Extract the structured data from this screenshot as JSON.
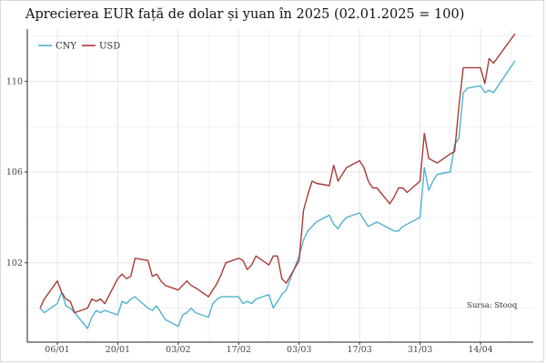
{
  "chart_data": {
    "type": "line",
    "title": "Aprecierea EUR față de dolar și yuan în 2025 (02.01.2025 = 100)",
    "source_note": "Sursa: Stooq",
    "xlabel": "",
    "ylabel": "",
    "x_start": "2025-01-02",
    "x_end": "2025-04-22",
    "ylim": [
      98.5,
      112.3
    ],
    "yticks": [
      102,
      106,
      110
    ],
    "xticks": [
      {
        "date": "2025-01-06",
        "label": "06/01"
      },
      {
        "date": "2025-01-20",
        "label": "20/01"
      },
      {
        "date": "2025-02-03",
        "label": "03/02"
      },
      {
        "date": "2025-02-17",
        "label": "17/02"
      },
      {
        "date": "2025-03-03",
        "label": "03/03"
      },
      {
        "date": "2025-03-17",
        "label": "17/03"
      },
      {
        "date": "2025-03-31",
        "label": "31/03"
      },
      {
        "date": "2025-04-14",
        "label": "14/04"
      }
    ],
    "grid": true,
    "legend_position": "top-left",
    "series": [
      {
        "name": "CNY",
        "color": "#4fb3cf",
        "points": [
          [
            "2025-01-02",
            100.0
          ],
          [
            "2025-01-03",
            99.8
          ],
          [
            "2025-01-06",
            100.2
          ],
          [
            "2025-01-07",
            100.7
          ],
          [
            "2025-01-08",
            100.1
          ],
          [
            "2025-01-09",
            100.0
          ],
          [
            "2025-01-10",
            99.8
          ],
          [
            "2025-01-13",
            99.1
          ],
          [
            "2025-01-14",
            99.6
          ],
          [
            "2025-01-15",
            99.9
          ],
          [
            "2025-01-16",
            99.8
          ],
          [
            "2025-01-17",
            99.9
          ],
          [
            "2025-01-20",
            99.7
          ],
          [
            "2025-01-21",
            100.3
          ],
          [
            "2025-01-22",
            100.2
          ],
          [
            "2025-01-23",
            100.4
          ],
          [
            "2025-01-24",
            100.5
          ],
          [
            "2025-01-27",
            100.0
          ],
          [
            "2025-01-28",
            99.9
          ],
          [
            "2025-01-29",
            100.1
          ],
          [
            "2025-01-30",
            99.8
          ],
          [
            "2025-01-31",
            99.5
          ],
          [
            "2025-02-03",
            99.2
          ],
          [
            "2025-02-04",
            99.7
          ],
          [
            "2025-02-05",
            99.8
          ],
          [
            "2025-02-06",
            100.0
          ],
          [
            "2025-02-07",
            99.8
          ],
          [
            "2025-02-10",
            99.6
          ],
          [
            "2025-02-11",
            100.2
          ],
          [
            "2025-02-12",
            100.4
          ],
          [
            "2025-02-13",
            100.5
          ],
          [
            "2025-02-14",
            100.5
          ],
          [
            "2025-02-17",
            100.5
          ],
          [
            "2025-02-18",
            100.2
          ],
          [
            "2025-02-19",
            100.3
          ],
          [
            "2025-02-20",
            100.2
          ],
          [
            "2025-02-21",
            100.4
          ],
          [
            "2025-02-24",
            100.6
          ],
          [
            "2025-02-25",
            100.0
          ],
          [
            "2025-02-26",
            100.3
          ],
          [
            "2025-02-27",
            100.6
          ],
          [
            "2025-02-28",
            100.8
          ],
          [
            "2025-03-03",
            102.3
          ],
          [
            "2025-03-04",
            103.0
          ],
          [
            "2025-03-05",
            103.4
          ],
          [
            "2025-03-06",
            103.6
          ],
          [
            "2025-03-07",
            103.8
          ],
          [
            "2025-03-10",
            104.1
          ],
          [
            "2025-03-11",
            103.7
          ],
          [
            "2025-03-12",
            103.5
          ],
          [
            "2025-03-13",
            103.8
          ],
          [
            "2025-03-14",
            104.0
          ],
          [
            "2025-03-17",
            104.2
          ],
          [
            "2025-03-18",
            103.9
          ],
          [
            "2025-03-19",
            103.6
          ],
          [
            "2025-03-20",
            103.7
          ],
          [
            "2025-03-21",
            103.8
          ],
          [
            "2025-03-24",
            103.5
          ],
          [
            "2025-03-25",
            103.4
          ],
          [
            "2025-03-26",
            103.4
          ],
          [
            "2025-03-27",
            103.6
          ],
          [
            "2025-03-28",
            103.7
          ],
          [
            "2025-03-31",
            104.0
          ],
          [
            "2025-04-01",
            106.2
          ],
          [
            "2025-04-02",
            105.2
          ],
          [
            "2025-04-03",
            105.6
          ],
          [
            "2025-04-04",
            105.9
          ],
          [
            "2025-04-07",
            106.0
          ],
          [
            "2025-04-08",
            107.2
          ],
          [
            "2025-04-09",
            107.5
          ],
          [
            "2025-04-10",
            109.5
          ],
          [
            "2025-04-11",
            109.7
          ],
          [
            "2025-04-14",
            109.8
          ],
          [
            "2025-04-15",
            109.5
          ],
          [
            "2025-04-16",
            109.6
          ],
          [
            "2025-04-17",
            109.5
          ],
          [
            "2025-04-22",
            110.9
          ]
        ]
      },
      {
        "name": "USD",
        "color": "#a93a35",
        "points": [
          [
            "2025-01-02",
            100.0
          ],
          [
            "2025-01-03",
            100.4
          ],
          [
            "2025-01-06",
            101.2
          ],
          [
            "2025-01-07",
            100.7
          ],
          [
            "2025-01-08",
            100.4
          ],
          [
            "2025-01-09",
            100.3
          ],
          [
            "2025-01-10",
            99.8
          ],
          [
            "2025-01-13",
            100.0
          ],
          [
            "2025-01-14",
            100.4
          ],
          [
            "2025-01-15",
            100.3
          ],
          [
            "2025-01-16",
            100.4
          ],
          [
            "2025-01-17",
            100.2
          ],
          [
            "2025-01-20",
            101.3
          ],
          [
            "2025-01-21",
            101.5
          ],
          [
            "2025-01-22",
            101.3
          ],
          [
            "2025-01-23",
            101.4
          ],
          [
            "2025-01-24",
            102.2
          ],
          [
            "2025-01-27",
            102.1
          ],
          [
            "2025-01-28",
            101.4
          ],
          [
            "2025-01-29",
            101.5
          ],
          [
            "2025-01-30",
            101.2
          ],
          [
            "2025-01-31",
            101.0
          ],
          [
            "2025-02-03",
            100.8
          ],
          [
            "2025-02-04",
            101.0
          ],
          [
            "2025-02-05",
            101.2
          ],
          [
            "2025-02-06",
            101.0
          ],
          [
            "2025-02-07",
            100.9
          ],
          [
            "2025-02-10",
            100.5
          ],
          [
            "2025-02-11",
            100.8
          ],
          [
            "2025-02-12",
            101.1
          ],
          [
            "2025-02-13",
            101.5
          ],
          [
            "2025-02-14",
            102.0
          ],
          [
            "2025-02-17",
            102.2
          ],
          [
            "2025-02-18",
            102.1
          ],
          [
            "2025-02-19",
            101.7
          ],
          [
            "2025-02-20",
            101.9
          ],
          [
            "2025-02-21",
            102.3
          ],
          [
            "2025-02-24",
            101.9
          ],
          [
            "2025-02-25",
            102.3
          ],
          [
            "2025-02-26",
            102.3
          ],
          [
            "2025-02-27",
            101.3
          ],
          [
            "2025-02-28",
            101.1
          ],
          [
            "2025-03-03",
            102.1
          ],
          [
            "2025-03-04",
            104.3
          ],
          [
            "2025-03-05",
            105.0
          ],
          [
            "2025-03-06",
            105.6
          ],
          [
            "2025-03-07",
            105.5
          ],
          [
            "2025-03-10",
            105.4
          ],
          [
            "2025-03-11",
            106.3
          ],
          [
            "2025-03-12",
            105.6
          ],
          [
            "2025-03-13",
            105.9
          ],
          [
            "2025-03-14",
            106.2
          ],
          [
            "2025-03-17",
            106.5
          ],
          [
            "2025-03-18",
            106.2
          ],
          [
            "2025-03-19",
            105.6
          ],
          [
            "2025-03-20",
            105.3
          ],
          [
            "2025-03-21",
            105.3
          ],
          [
            "2025-03-24",
            104.6
          ],
          [
            "2025-03-25",
            104.9
          ],
          [
            "2025-03-26",
            105.3
          ],
          [
            "2025-03-27",
            105.3
          ],
          [
            "2025-03-28",
            105.1
          ],
          [
            "2025-03-31",
            105.6
          ],
          [
            "2025-04-01",
            107.7
          ],
          [
            "2025-04-02",
            106.6
          ],
          [
            "2025-04-03",
            106.5
          ],
          [
            "2025-04-04",
            106.4
          ],
          [
            "2025-04-07",
            106.8
          ],
          [
            "2025-04-08",
            106.9
          ],
          [
            "2025-04-09",
            108.9
          ],
          [
            "2025-04-10",
            110.6
          ],
          [
            "2025-04-11",
            110.6
          ],
          [
            "2025-04-14",
            110.6
          ],
          [
            "2025-04-15",
            109.9
          ],
          [
            "2025-04-16",
            111.0
          ],
          [
            "2025-04-17",
            110.8
          ],
          [
            "2025-04-22",
            112.1
          ]
        ]
      }
    ]
  }
}
